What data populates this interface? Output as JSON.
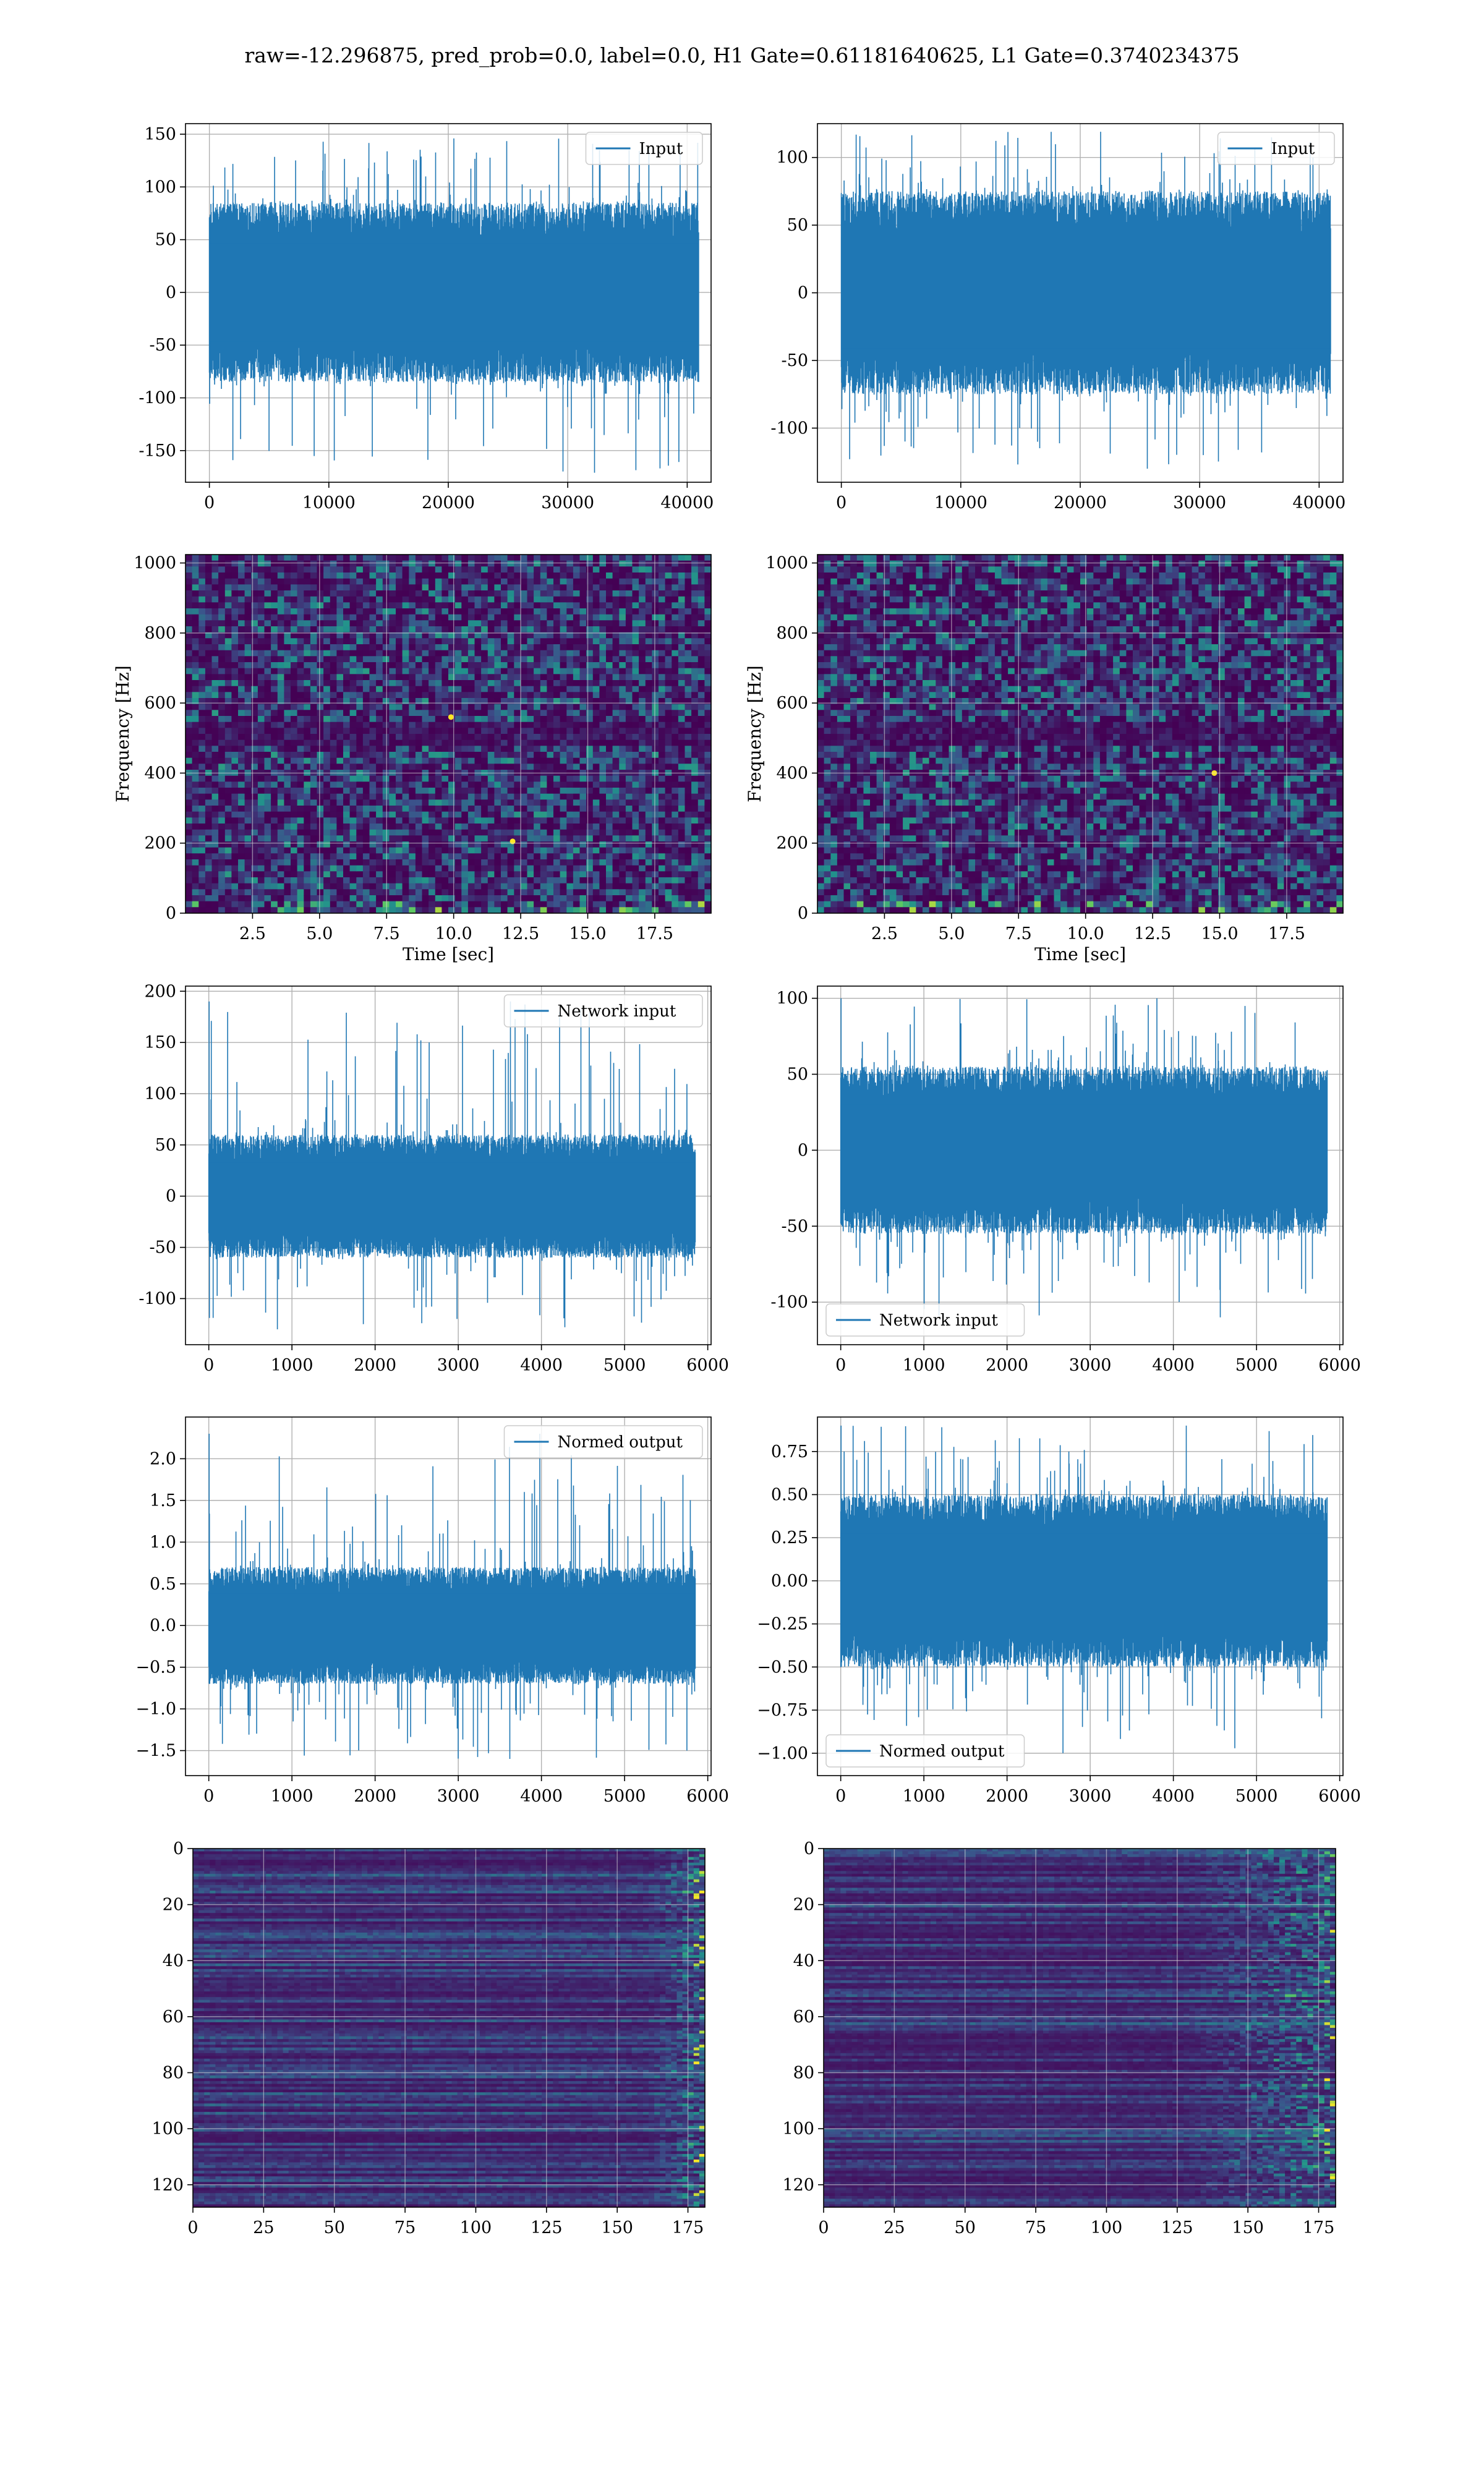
{
  "figure": {
    "suptitle": "raw=-12.296875, pred_prob=0.0, label=0.0, H1 Gate=0.61181640625, L1 Gate=0.3740234375"
  },
  "colors": {
    "line": "#1f77b4",
    "grid": "#b0b0b0",
    "axes_edge": "#000000",
    "viridis_dark": "#440154",
    "viridis_mid": "#21918c",
    "viridis_bright": "#fde725"
  },
  "chart_data": [
    {
      "id": "row1-left",
      "type": "line",
      "title": "",
      "xlabel": "",
      "ylabel": "",
      "legend": {
        "labels": [
          "Input"
        ],
        "loc": "upper right"
      },
      "xlim": [
        -2000,
        42000
      ],
      "ylim": [
        -180,
        160
      ],
      "xticks": [
        0,
        10000,
        20000,
        30000,
        40000
      ],
      "yticks": [
        -150,
        -100,
        -50,
        0,
        50,
        100,
        150
      ],
      "grid": true,
      "series": [
        {
          "name": "Input",
          "x_range": [
            0,
            40960
          ],
          "envelope": [
            -85,
            85
          ],
          "max": 146,
          "min": -171,
          "style": "dense-noise"
        }
      ]
    },
    {
      "id": "row1-right",
      "type": "line",
      "title": "",
      "xlabel": "",
      "ylabel": "",
      "legend": {
        "labels": [
          "Input"
        ],
        "loc": "upper right"
      },
      "xlim": [
        -2000,
        42000
      ],
      "ylim": [
        -140,
        125
      ],
      "xticks": [
        0,
        10000,
        20000,
        30000,
        40000
      ],
      "yticks": [
        -100,
        -50,
        0,
        50,
        100
      ],
      "grid": true,
      "series": [
        {
          "name": "Input",
          "x_range": [
            0,
            40960
          ],
          "envelope": [
            -75,
            75
          ],
          "max": 119,
          "min": -130,
          "style": "dense-noise"
        }
      ]
    },
    {
      "id": "row2-left",
      "type": "heatmap",
      "title": "",
      "xlabel": "Time [sec]",
      "ylabel": "Frequency [Hz]",
      "xlim": [
        0,
        19.6
      ],
      "ylim": [
        0,
        1024
      ],
      "xticks": [
        2.5,
        5.0,
        7.5,
        10.0,
        12.5,
        15.0,
        17.5
      ],
      "yticks": [
        0,
        200,
        400,
        600,
        800,
        1000
      ],
      "grid": true,
      "colormap": "viridis",
      "hotspots": [
        {
          "t": 9.9,
          "f": 560
        },
        {
          "t": 12.2,
          "f": 205
        }
      ]
    },
    {
      "id": "row2-right",
      "type": "heatmap",
      "title": "",
      "xlabel": "Time [sec]",
      "ylabel": "Frequency [Hz]",
      "xlim": [
        0,
        19.6
      ],
      "ylim": [
        0,
        1024
      ],
      "xticks": [
        2.5,
        5.0,
        7.5,
        10.0,
        12.5,
        15.0,
        17.5
      ],
      "yticks": [
        0,
        200,
        400,
        600,
        800,
        1000
      ],
      "grid": true,
      "colormap": "viridis",
      "hotspots": [
        {
          "t": 14.8,
          "f": 400
        }
      ]
    },
    {
      "id": "row3-left",
      "type": "line",
      "title": "",
      "xlabel": "",
      "ylabel": "",
      "legend": {
        "labels": [
          "Network input"
        ],
        "loc": "upper right"
      },
      "xlim": [
        -280,
        6040
      ],
      "ylim": [
        -145,
        205
      ],
      "xticks": [
        0,
        1000,
        2000,
        3000,
        4000,
        5000,
        6000
      ],
      "yticks": [
        -100,
        -50,
        0,
        50,
        100,
        150,
        200
      ],
      "grid": true,
      "series": [
        {
          "name": "Network input",
          "x_range": [
            0,
            5850
          ],
          "envelope": [
            -60,
            60
          ],
          "max": 190,
          "min": -130,
          "style": "dense-noise"
        }
      ]
    },
    {
      "id": "row3-right",
      "type": "line",
      "title": "",
      "xlabel": "",
      "ylabel": "",
      "legend": {
        "labels": [
          "Network input"
        ],
        "loc": "lower left"
      },
      "xlim": [
        -280,
        6040
      ],
      "ylim": [
        -128,
        108
      ],
      "xticks": [
        0,
        1000,
        2000,
        3000,
        4000,
        5000,
        6000
      ],
      "yticks": [
        -100,
        -50,
        0,
        50,
        100
      ],
      "grid": true,
      "series": [
        {
          "name": "Network input",
          "x_range": [
            0,
            5850
          ],
          "envelope": [
            -55,
            55
          ],
          "max": 100,
          "min": -110,
          "style": "dense-noise"
        }
      ]
    },
    {
      "id": "row4-left",
      "type": "line",
      "title": "",
      "xlabel": "",
      "ylabel": "",
      "legend": {
        "labels": [
          "Normed output"
        ],
        "loc": "upper right"
      },
      "xlim": [
        -280,
        6040
      ],
      "ylim": [
        -1.8,
        2.5
      ],
      "xticks": [
        0,
        1000,
        2000,
        3000,
        4000,
        5000,
        6000
      ],
      "yticks": [
        -1.5,
        -1.0,
        -0.5,
        0.0,
        0.5,
        1.0,
        1.5,
        2.0
      ],
      "grid": true,
      "series": [
        {
          "name": "Normed output",
          "x_range": [
            0,
            5850
          ],
          "envelope": [
            -0.7,
            0.7
          ],
          "max": 2.3,
          "min": -1.6,
          "style": "dense-noise"
        }
      ]
    },
    {
      "id": "row4-right",
      "type": "line",
      "title": "",
      "xlabel": "",
      "ylabel": "",
      "legend": {
        "labels": [
          "Normed output"
        ],
        "loc": "lower left"
      },
      "xlim": [
        -280,
        6040
      ],
      "ylim": [
        -1.13,
        0.95
      ],
      "xticks": [
        0,
        1000,
        2000,
        3000,
        4000,
        5000,
        6000
      ],
      "yticks": [
        -1.0,
        -0.75,
        -0.5,
        -0.25,
        0.0,
        0.25,
        0.5,
        0.75
      ],
      "grid": true,
      "series": [
        {
          "name": "Normed output",
          "x_range": [
            0,
            5850
          ],
          "envelope": [
            -0.5,
            0.5
          ],
          "max": 0.9,
          "min": -1.0,
          "style": "dense-noise"
        }
      ]
    },
    {
      "id": "row5-left",
      "type": "heatmap",
      "title": "",
      "xlabel": "",
      "ylabel": "",
      "xlim": [
        0,
        181
      ],
      "ylim": [
        128,
        0
      ],
      "xticks": [
        0,
        25,
        50,
        75,
        100,
        125,
        150,
        175
      ],
      "yticks": [
        0,
        20,
        40,
        60,
        80,
        100,
        120
      ],
      "grid": true,
      "colormap": "viridis",
      "bright_from_col": 160
    },
    {
      "id": "row5-right",
      "type": "heatmap",
      "title": "",
      "xlabel": "",
      "ylabel": "",
      "xlim": [
        0,
        181
      ],
      "ylim": [
        128,
        0
      ],
      "xticks": [
        0,
        25,
        50,
        75,
        100,
        125,
        150,
        175
      ],
      "yticks": [
        0,
        20,
        40,
        60,
        80,
        100,
        120
      ],
      "grid": true,
      "colormap": "viridis",
      "bright_from_col": 125
    }
  ]
}
